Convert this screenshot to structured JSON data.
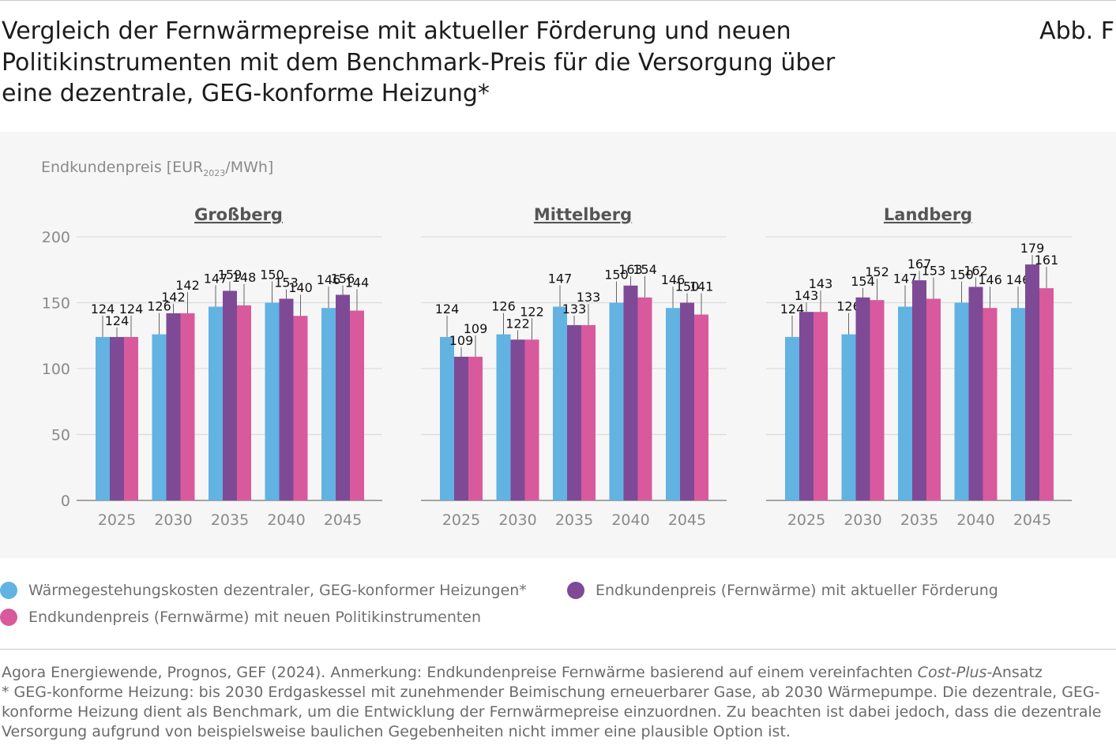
{
  "title": "Vergleich der Fernwärmepreise mit aktueller Förderung und neuen Politikinstrumenten mit dem Benchmark-Preis für die Versorgung über eine dezentrale, GEG-konforme Heizung*",
  "figure_label": "Abb. F",
  "legend": [
    {
      "label": "Wärmegestehungskosten dezentraler, GEG-konformer Heizungen*",
      "color": "#62b2e2"
    },
    {
      "label": "Endkundenpreis (Fernwärme) mit aktueller Förderung",
      "color": "#7e4a96"
    },
    {
      "label": "Endkundenpreis (Fernwärme) mit neuen Politikinstrumenten",
      "color": "#d85a9c"
    }
  ],
  "source": {
    "line1_prefix": "Agora Energiewende, Prognos, GEF (2024). Anmerkung: Endkundenpreise Fernwärme basierend auf einem vereinfachten ",
    "line1_italic": "Cost-Plus",
    "line1_suffix": "-Ansatz",
    "note": "* GEG-konforme Heizung: bis 2030 Erdgaskessel mit zunehmender Beimischung erneuerbarer Gase, ab 2030 Wärmepumpe. Die dezentrale, GEG-konforme Heizung dient als Benchmark, um die Entwicklung der Fernwärmepreise einzuordnen. Zu beachten ist dabei jedoch, dass die dezentrale Versorgung aufgrund von beispielsweise baulichen Gegebenheiten nicht immer eine plausible Option ist."
  },
  "chart_data": {
    "type": "bar",
    "ylabel_main": "Endkundenpreis [EUR",
    "ylabel_sub": "2023",
    "ylabel_end": "/MWh]",
    "ylim": [
      0,
      200
    ],
    "yticks": [
      0,
      50,
      100,
      150,
      200
    ],
    "categories": [
      "2025",
      "2030",
      "2035",
      "2040",
      "2045"
    ],
    "series_names": [
      "Wärmegestehungskosten dezentraler, GEG-konformer Heizungen*",
      "Endkundenpreis (Fernwärme) mit aktueller Förderung",
      "Endkundenpreis (Fernwärme) mit neuen Politikinstrumenten"
    ],
    "colors": [
      "#62b2e2",
      "#7e4a96",
      "#d85a9c"
    ],
    "panels": [
      {
        "title": "Großberg",
        "values": [
          [
            124,
            126,
            147,
            150,
            146
          ],
          [
            124,
            142,
            159,
            153,
            156
          ],
          [
            124,
            142,
            148,
            140,
            144
          ]
        ]
      },
      {
        "title": "Mittelberg",
        "values": [
          [
            124,
            126,
            147,
            150,
            146
          ],
          [
            109,
            122,
            133,
            163,
            150
          ],
          [
            109,
            122,
            133,
            154,
            141
          ]
        ]
      },
      {
        "title": "Landberg",
        "values": [
          [
            124,
            126,
            147,
            150,
            146
          ],
          [
            143,
            154,
            167,
            162,
            179
          ],
          [
            143,
            152,
            153,
            146,
            161
          ]
        ]
      }
    ]
  }
}
